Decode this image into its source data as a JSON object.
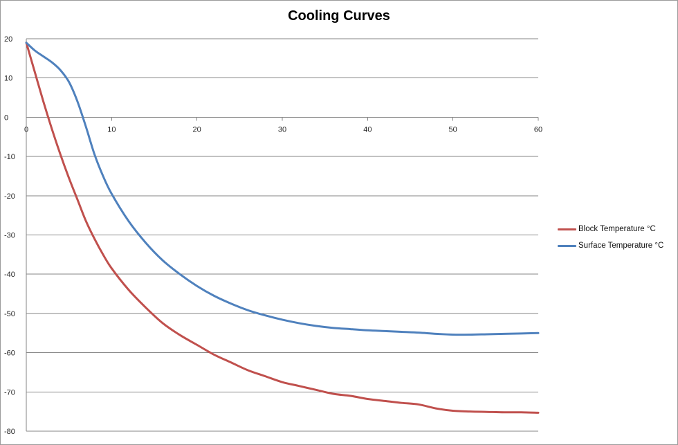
{
  "chart_data": {
    "type": "line",
    "title": "Cooling Curves",
    "xlabel": "",
    "ylabel": "",
    "xlim": [
      0,
      60
    ],
    "ylim": [
      -80,
      20
    ],
    "x_ticks": [
      0,
      10,
      20,
      30,
      40,
      50,
      60
    ],
    "y_ticks": [
      20,
      10,
      0,
      -10,
      -20,
      -30,
      -40,
      -50,
      -60,
      -70,
      -80
    ],
    "grid": "horizontal",
    "legend_position": "right",
    "series": [
      {
        "name": "Block Temperature °C",
        "color": "#C0504D",
        "points": [
          [
            0,
            19
          ],
          [
            1,
            11.5
          ],
          [
            2,
            4
          ],
          [
            3,
            -3
          ],
          [
            4,
            -9.5
          ],
          [
            5,
            -15.5
          ],
          [
            6,
            -21
          ],
          [
            7,
            -26.5
          ],
          [
            8,
            -31
          ],
          [
            9,
            -35
          ],
          [
            10,
            -38.5
          ],
          [
            12,
            -44
          ],
          [
            14,
            -48.5
          ],
          [
            16,
            -52.5
          ],
          [
            18,
            -55.5
          ],
          [
            20,
            -58
          ],
          [
            22,
            -60.5
          ],
          [
            24,
            -62.5
          ],
          [
            26,
            -64.5
          ],
          [
            28,
            -66
          ],
          [
            30,
            -67.5
          ],
          [
            32,
            -68.5
          ],
          [
            34,
            -69.5
          ],
          [
            36,
            -70.5
          ],
          [
            38,
            -71
          ],
          [
            40,
            -71.8
          ],
          [
            42,
            -72.3
          ],
          [
            44,
            -72.8
          ],
          [
            46,
            -73.2
          ],
          [
            48,
            -74.2
          ],
          [
            50,
            -74.8
          ],
          [
            52,
            -75
          ],
          [
            54,
            -75.1
          ],
          [
            56,
            -75.2
          ],
          [
            58,
            -75.2
          ],
          [
            60,
            -75.3
          ]
        ]
      },
      {
        "name": "Surface Temperature °C",
        "color": "#4F81BD",
        "points": [
          [
            0,
            19
          ],
          [
            1,
            17
          ],
          [
            2,
            15.5
          ],
          [
            3,
            14
          ],
          [
            4,
            12
          ],
          [
            5,
            9
          ],
          [
            6,
            4
          ],
          [
            7,
            -2.5
          ],
          [
            8,
            -9.5
          ],
          [
            9,
            -15
          ],
          [
            10,
            -19.5
          ],
          [
            12,
            -26.5
          ],
          [
            14,
            -32
          ],
          [
            16,
            -36.5
          ],
          [
            18,
            -40
          ],
          [
            20,
            -43
          ],
          [
            22,
            -45.5
          ],
          [
            24,
            -47.5
          ],
          [
            26,
            -49.2
          ],
          [
            28,
            -50.5
          ],
          [
            30,
            -51.6
          ],
          [
            32,
            -52.5
          ],
          [
            34,
            -53.2
          ],
          [
            36,
            -53.7
          ],
          [
            38,
            -54
          ],
          [
            40,
            -54.3
          ],
          [
            42,
            -54.5
          ],
          [
            44,
            -54.7
          ],
          [
            46,
            -54.9
          ],
          [
            48,
            -55.2
          ],
          [
            50,
            -55.4
          ],
          [
            52,
            -55.4
          ],
          [
            54,
            -55.3
          ],
          [
            56,
            -55.2
          ],
          [
            58,
            -55.1
          ],
          [
            60,
            -55
          ]
        ]
      }
    ]
  }
}
